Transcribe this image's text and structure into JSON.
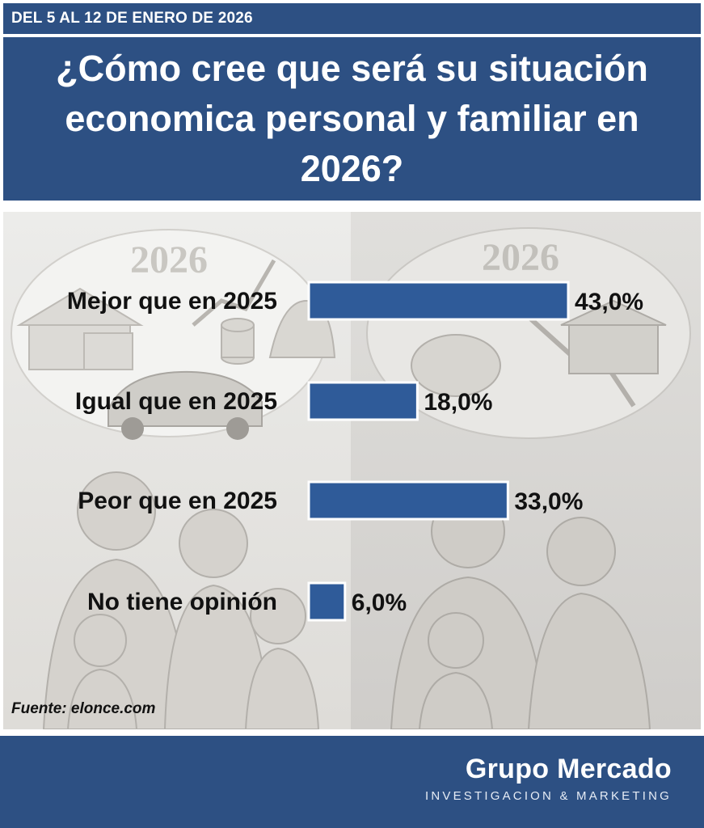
{
  "date_range": "DEL 5 AL 12 DE ENERO DE 2026",
  "question": "¿Cómo cree que será su situación economica personal y familiar en 2026?",
  "source": "Fuente: elonce.com",
  "brand": {
    "name": "Grupo Mercado",
    "tagline": "INVESTIGACION & MARKETING"
  },
  "illustration": {
    "left_thought_label": "2026",
    "right_thought_label": "2026"
  },
  "colors": {
    "header_bg": "#2d5083",
    "bar_fill": "#2f5b99",
    "text": "#111111"
  },
  "chart_data": {
    "type": "bar",
    "orientation": "horizontal",
    "categories": [
      "Mejor que en 2025",
      "Igual que en 2025",
      "Peor que en 2025",
      "No tiene opinión"
    ],
    "values": [
      43.0,
      18.0,
      33.0,
      6.0
    ],
    "value_labels": [
      "43,0%",
      "18,0%",
      "33,0%",
      "6,0%"
    ],
    "unit": "%",
    "xlim": [
      0,
      43
    ],
    "grid": false,
    "legend": false
  }
}
